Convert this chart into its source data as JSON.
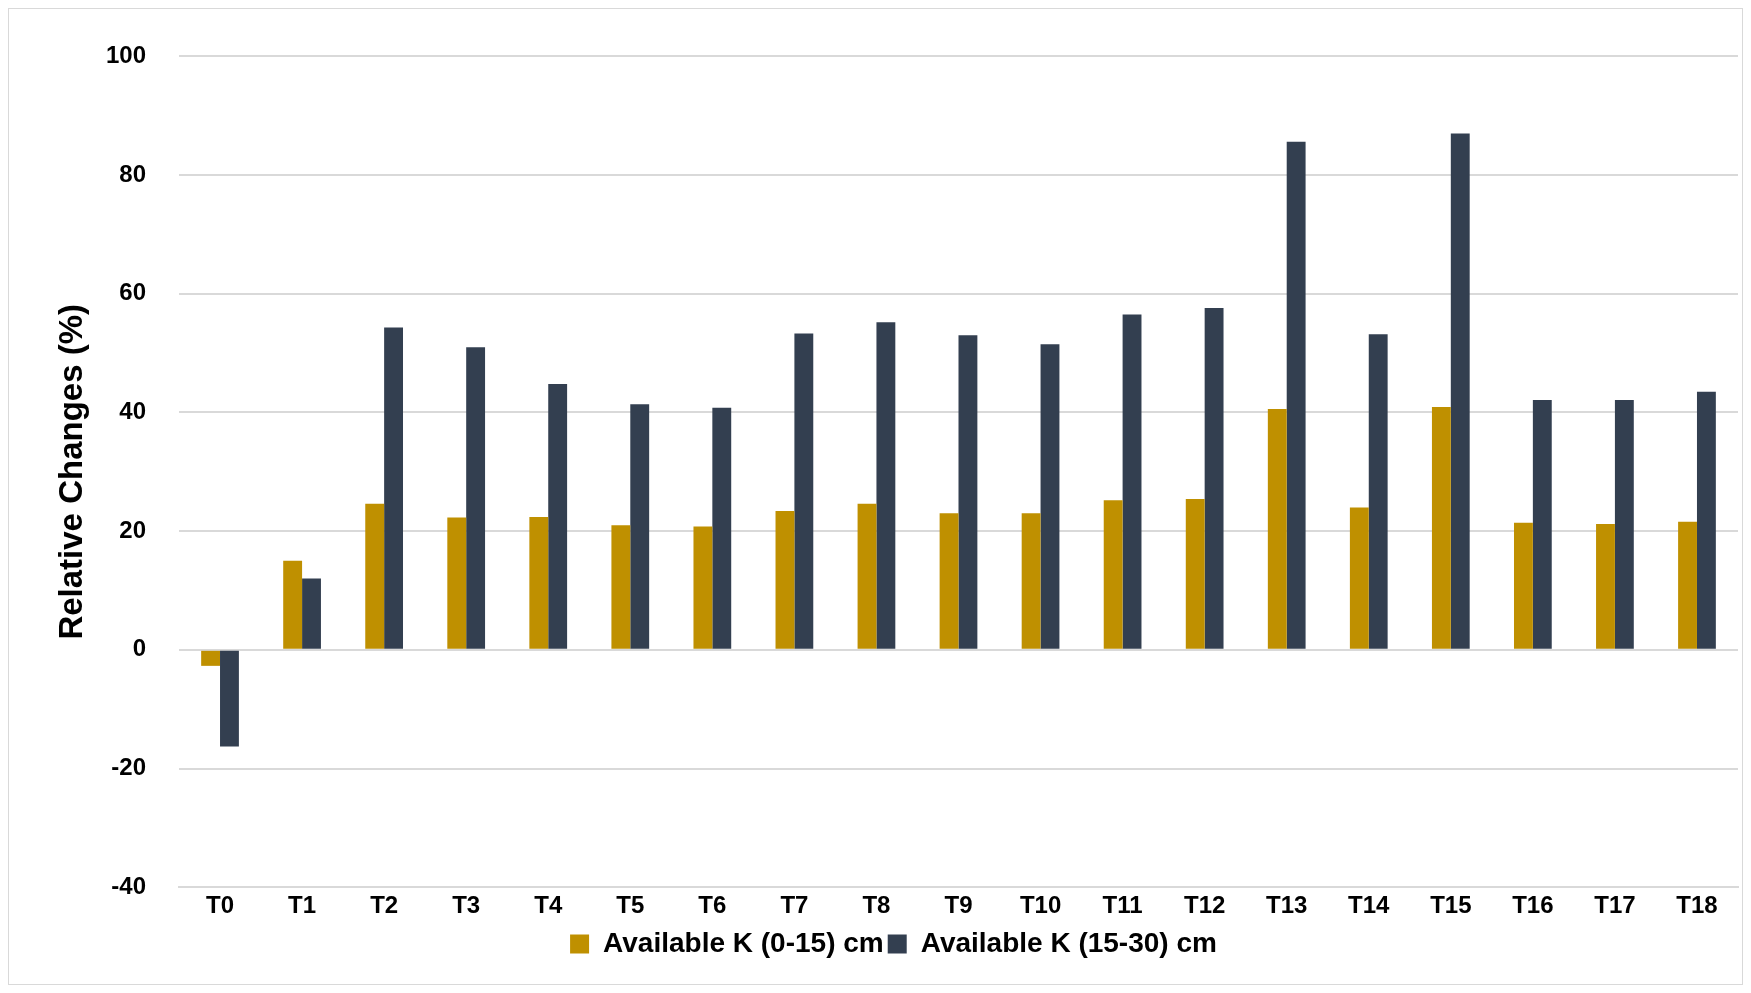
{
  "chart_data": {
    "type": "bar",
    "ylabel": "Relative Changes (%)",
    "categories": [
      "T0",
      "T1",
      "T2",
      "T3",
      "T4",
      "T5",
      "T6",
      "T7",
      "T8",
      "T9",
      "T10",
      "T11",
      "T12",
      "T13",
      "T14",
      "T15",
      "T16",
      "T17",
      "T18"
    ],
    "series": [
      {
        "name": "Available K (0-15) cm",
        "color": "#bf9000",
        "values": [
          -2.7,
          15,
          24.6,
          22.3,
          22.4,
          21,
          20.8,
          23.4,
          24.6,
          23,
          23,
          25.2,
          25.4,
          40.6,
          24,
          40.9,
          21.4,
          21.2,
          21.6
        ]
      },
      {
        "name": "Available K (15-30) cm",
        "color": "#333f50",
        "values": [
          -16.3,
          12,
          54.3,
          51,
          44.8,
          41.4,
          40.8,
          53.3,
          55.2,
          53,
          51.5,
          56.5,
          57.6,
          85.6,
          53.2,
          87,
          42.1,
          42.1,
          43.5
        ]
      }
    ],
    "ylim": [
      -40,
      100
    ],
    "yticks": [
      -40,
      -20,
      0,
      20,
      40,
      60,
      80,
      100
    ],
    "grid": "y",
    "legend": "bottom"
  }
}
